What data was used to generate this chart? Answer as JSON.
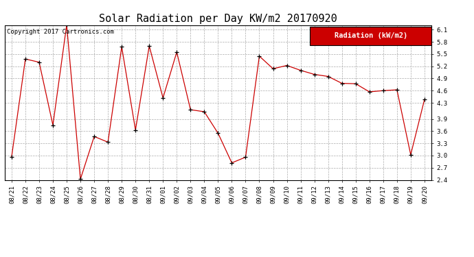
{
  "title": "Solar Radiation per Day KW/m2 20170920",
  "copyright_text": "Copyright 2017 Cartronics.com",
  "legend_label": "Radiation (kW/m2)",
  "dates": [
    "08/21",
    "08/22",
    "08/23",
    "08/24",
    "08/25",
    "08/26",
    "08/27",
    "08/28",
    "08/29",
    "08/30",
    "08/31",
    "09/01",
    "09/02",
    "09/03",
    "09/04",
    "09/05",
    "09/06",
    "09/07",
    "09/08",
    "09/09",
    "09/10",
    "09/11",
    "09/12",
    "09/13",
    "09/14",
    "09/15",
    "09/16",
    "09/17",
    "09/18",
    "09/19",
    "09/20"
  ],
  "values": [
    2.97,
    5.38,
    5.3,
    3.75,
    6.22,
    2.42,
    3.47,
    3.33,
    5.68,
    3.63,
    5.7,
    4.42,
    5.55,
    4.13,
    4.08,
    3.55,
    2.82,
    2.96,
    5.45,
    5.14,
    5.22,
    5.1,
    5.0,
    4.95,
    4.78,
    4.77,
    4.57,
    4.6,
    4.62,
    3.02,
    4.38
  ],
  "ylim": [
    2.4,
    6.2
  ],
  "yticks": [
    2.4,
    2.7,
    3.0,
    3.3,
    3.6,
    3.9,
    4.3,
    4.6,
    4.9,
    5.2,
    5.5,
    5.8,
    6.1
  ],
  "line_color": "#cc0000",
  "marker": "+",
  "marker_color": "#000000",
  "bg_color": "#ffffff",
  "grid_color": "#aaaaaa",
  "legend_bg": "#cc0000",
  "legend_text_color": "#ffffff",
  "title_fontsize": 11,
  "copyright_fontsize": 6.5,
  "tick_fontsize": 6.5,
  "legend_fontsize": 7.5
}
